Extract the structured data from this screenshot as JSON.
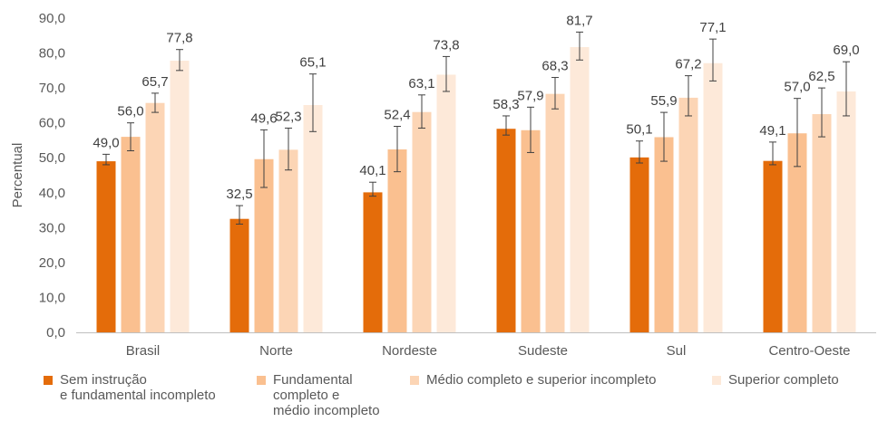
{
  "chart_data": {
    "type": "bar",
    "ylabel": "Percentual",
    "xlabel": "",
    "ylim": [
      0,
      90
    ],
    "yticks": [
      "0,0",
      "10,0",
      "20,0",
      "30,0",
      "40,0",
      "50,0",
      "60,0",
      "70,0",
      "80,0",
      "90,0"
    ],
    "categories": [
      "Brasil",
      "Norte",
      "Nordeste",
      "Sudeste",
      "Sul",
      "Centro-Oeste"
    ],
    "series": [
      {
        "name": "Sem instrução\ne fundamental incompleto",
        "color": "#E46C0A",
        "values": [
          49.0,
          32.5,
          40.1,
          58.3,
          50.1,
          49.1
        ],
        "labels": [
          "49,0",
          "32,5",
          "40,1",
          "58,3",
          "50,1",
          "49,1"
        ],
        "error_low": [
          48.0,
          31.0,
          39.0,
          56.5,
          48.5,
          48.0
        ],
        "error_high": [
          51.0,
          36.3,
          43.0,
          62.0,
          54.8,
          54.5
        ]
      },
      {
        "name": "Fundamental\ncompleto e\nmédio incompleto",
        "color": "#FAC090",
        "values": [
          56.0,
          49.6,
          52.4,
          57.9,
          55.9,
          57.0
        ],
        "labels": [
          "56,0",
          "49,6",
          "52,4",
          "57,9",
          "55,9",
          "57,0"
        ],
        "error_low": [
          52.0,
          41.5,
          46.0,
          51.5,
          49.0,
          47.5
        ],
        "error_high": [
          60.0,
          58.0,
          59.0,
          64.5,
          63.0,
          67.0
        ]
      },
      {
        "name": "Médio completo e superior incompleto",
        "color": "#FCD5B5",
        "values": [
          65.7,
          52.3,
          63.1,
          68.3,
          67.2,
          62.5
        ],
        "labels": [
          "65,7",
          "52,3",
          "63,1",
          "68,3",
          "67,2",
          "62,5"
        ],
        "error_low": [
          63.0,
          46.5,
          58.5,
          64.0,
          62.0,
          56.0
        ],
        "error_high": [
          68.5,
          58.5,
          68.0,
          73.0,
          73.5,
          70.0
        ]
      },
      {
        "name": "Superior completo",
        "color": "#FDE9D9",
        "values": [
          77.8,
          65.1,
          73.8,
          81.7,
          77.1,
          69.0
        ],
        "labels": [
          "77,8",
          "65,1",
          "73,8",
          "81,7",
          "77,1",
          "69,0"
        ],
        "error_low": [
          75.0,
          57.5,
          69.0,
          78.0,
          72.0,
          62.0
        ],
        "error_high": [
          81.0,
          74.0,
          79.0,
          86.0,
          84.0,
          77.5
        ]
      }
    ],
    "legend_position": "bottom",
    "grid": false
  }
}
